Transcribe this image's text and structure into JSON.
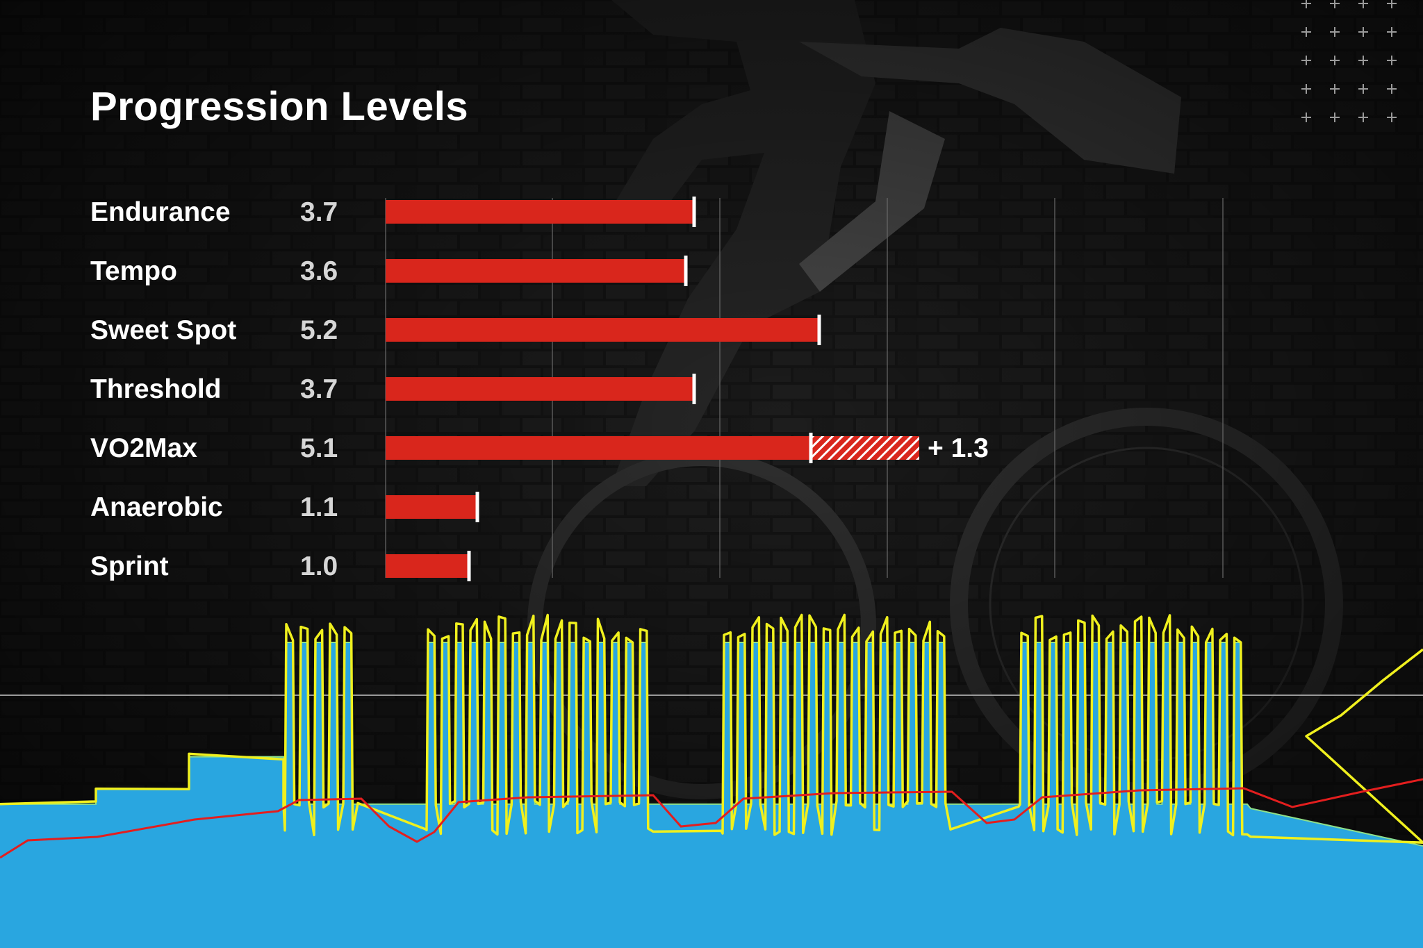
{
  "title": "Progression Levels",
  "colors": {
    "bar": "#d9261c",
    "marker": "#ffffff",
    "gridline": "#6a6a6a",
    "workout_area": "#29a6e0",
    "power_line": "#f0f01e",
    "heart_rate_line": "#e31e1e",
    "text": "#ffffff",
    "value_text": "#d6d6d6"
  },
  "background": {
    "decor_icon": "plus-grid-icon",
    "photo": "cyclist-on-indoor-trainer-photo"
  },
  "chart_data": [
    {
      "type": "bar",
      "orientation": "horizontal",
      "title": "Progression Levels",
      "categories": [
        "Endurance",
        "Tempo",
        "Sweet Spot",
        "Threshold",
        "VO2Max",
        "Anaerobic",
        "Sprint"
      ],
      "value_labels": [
        "3.7",
        "3.6",
        "5.2",
        "3.7",
        "5.1",
        "1.1",
        "1.0"
      ],
      "values": [
        3.7,
        3.6,
        5.2,
        3.7,
        5.1,
        1.1,
        1.0
      ],
      "gains": [
        null,
        null,
        null,
        null,
        1.3,
        null,
        null
      ],
      "gain_labels": [
        "",
        "",
        "",
        "",
        "+ 1.3",
        "",
        ""
      ],
      "xlim": [
        0,
        10
      ],
      "grid": true,
      "legend": "none"
    },
    {
      "type": "area",
      "description_kind": "workout-profile",
      "series": [
        {
          "kind": "area",
          "role": "target",
          "values": [
            {
              "t": 0,
              "v": 0.4
            },
            {
              "t": 0.067,
              "v": 0.4
            },
            {
              "t": 0.067,
              "v": 0.47
            },
            {
              "t": 0.133,
              "v": 0.47
            },
            {
              "t": 0.133,
              "v": 0.62
            },
            {
              "t": 0.2,
              "v": 0.62
            },
            {
              "t": 0.2,
              "v": 0.4
            },
            {
              "t": 0.252,
              "v": 1.15
            },
            {
              "t": 0.287,
              "v": 1.15
            },
            {
              "t": 0.3,
              "v": 0.4
            },
            {
              "t": 0.4,
              "v": 1.15
            },
            {
              "t": 0.46,
              "v": 1.15
            },
            {
              "t": 0.51,
              "v": 0.4
            },
            {
              "t": 0.67,
              "v": 1.15
            },
            {
              "t": 0.72,
              "v": 0.4
            },
            {
              "t": 0.88,
              "v": 1.15
            },
            {
              "t": 1.0,
              "v": 0.2
            }
          ]
        },
        {
          "kind": "line",
          "role": "power"
        },
        {
          "kind": "line",
          "role": "heart-rate"
        }
      ],
      "ftp_reference_line": true,
      "grid": false,
      "legend": "none"
    }
  ]
}
